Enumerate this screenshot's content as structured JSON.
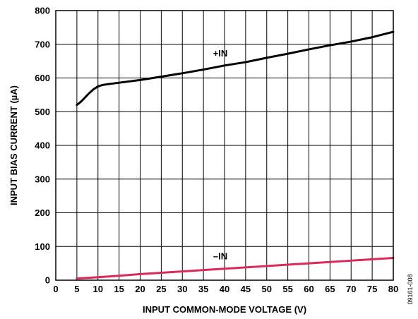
{
  "chart_data": {
    "type": "line",
    "xlabel": "INPUT COMMON-MODE VOLTAGE (V)",
    "ylabel": "INPUT BIAS CURRENT (µA)",
    "xlim": [
      0,
      80
    ],
    "ylim": [
      0,
      800
    ],
    "x_ticks": [
      0,
      5,
      10,
      15,
      20,
      25,
      30,
      35,
      40,
      45,
      50,
      55,
      60,
      65,
      70,
      75,
      80
    ],
    "y_ticks": [
      0,
      100,
      200,
      300,
      400,
      500,
      600,
      700,
      800
    ],
    "grid": true,
    "series": [
      {
        "name": "+IN",
        "color": "#000000",
        "x": [
          5,
          6,
          7,
          8,
          9,
          10,
          11,
          12,
          15,
          20,
          25,
          30,
          35,
          40,
          45,
          50,
          55,
          60,
          65,
          70,
          75,
          80
        ],
        "y": [
          520,
          530,
          543,
          556,
          567,
          575,
          579,
          581,
          586,
          594,
          604,
          614,
          625,
          637,
          647,
          660,
          672,
          685,
          697,
          708,
          721,
          737
        ]
      },
      {
        "name": "–IN",
        "color": "#d92b58",
        "x": [
          5,
          10,
          15,
          20,
          25,
          30,
          35,
          40,
          45,
          50,
          55,
          60,
          65,
          70,
          75,
          80
        ],
        "y": [
          5,
          9,
          13,
          18,
          22,
          26,
          30,
          34,
          38,
          42,
          46,
          50,
          54,
          58,
          62,
          66
        ]
      }
    ]
  },
  "figure_id": "09161-008"
}
